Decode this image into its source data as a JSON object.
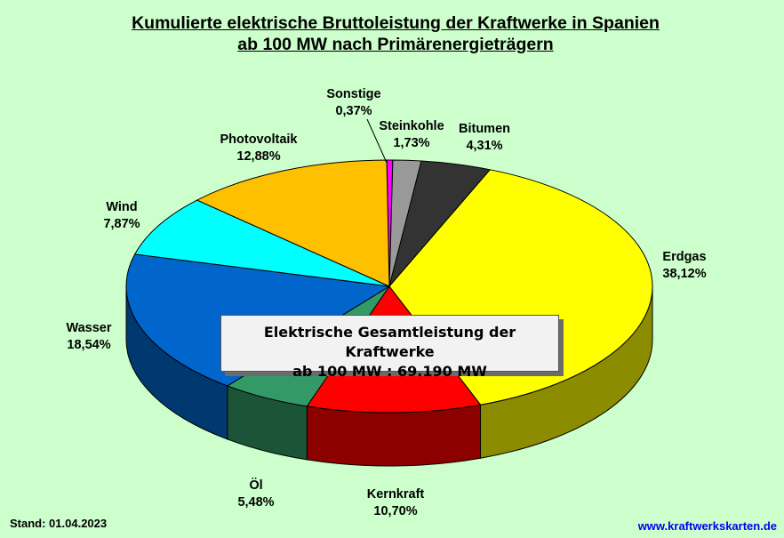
{
  "chart_data": {
    "type": "pie",
    "title": "Kumulierte elektrische Bruttoleistung der Kraftwerke in Spanien",
    "subtitle": "ab 100 MW nach Primärenergieträgern",
    "categories": [
      "Sonstige",
      "Steinkohle",
      "Bitumen",
      "Erdgas",
      "Kernkraft",
      "Öl",
      "Wasser",
      "Wind",
      "Photovoltaik"
    ],
    "values": [
      0.37,
      1.73,
      4.31,
      38.12,
      10.7,
      5.48,
      18.54,
      7.87,
      12.88
    ],
    "value_labels": [
      "0,37%",
      "1,73%",
      "4,31%",
      "38,12%",
      "10,70%",
      "5,48%",
      "18,54%",
      "7,87%",
      "12,88%"
    ],
    "colors": [
      "#ff00ff",
      "#999999",
      "#333333",
      "#ffff00",
      "#ff0000",
      "#339966",
      "#0066cc",
      "#00ffff",
      "#ffc000"
    ],
    "style": "3d"
  },
  "info_box": {
    "line1": "Elektrische Gesamtleistung der Kraftwerke",
    "line2": "ab 100 MW :  69.190 MW"
  },
  "footer": {
    "stand": "Stand: 01.04.2023",
    "url": "www.kraftwerkskarten.de"
  }
}
